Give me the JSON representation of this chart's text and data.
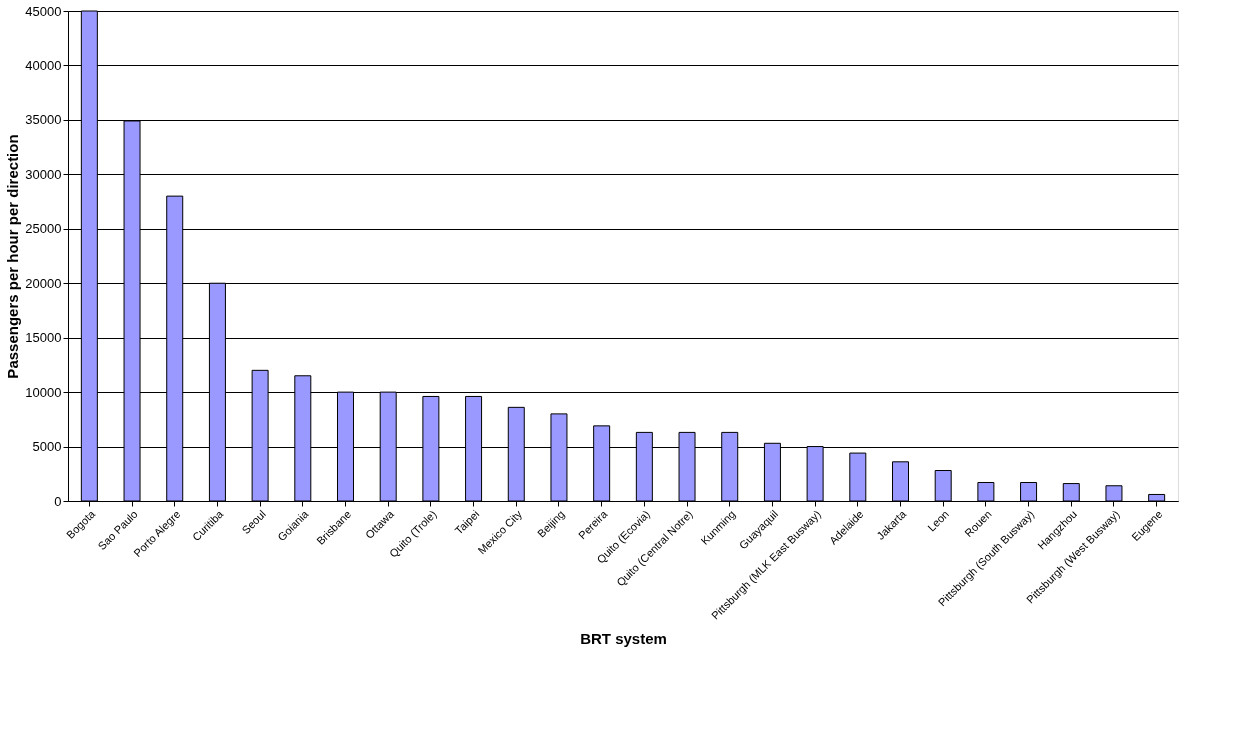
{
  "chart_data": {
    "type": "bar",
    "xlabel": "BRT system",
    "ylabel": "Passengers per hour per direction",
    "categories": [
      "Bogota",
      "Sao Paulo",
      "Porto Alegre",
      "Curitiba",
      "Seoul",
      "Goiania",
      "Brisbane",
      "Ottawa",
      "Quito (Trole)",
      "Taipei",
      "Mexico City",
      "Beijing",
      "Pereira",
      "Quito (Ecovia)",
      "Quito (Central Notre)",
      "Kunming",
      "Guayaquil",
      "Pittsburgh (MLK East Busway)",
      "Adelaide",
      "Jakarta",
      "Leon",
      "Rouen",
      "Pittsburgh (South Busway)",
      "Hangzhou",
      "Pittsburgh (West Busway)",
      "Eugene"
    ],
    "values": [
      45000,
      34900,
      28000,
      20000,
      12000,
      11500,
      10000,
      10000,
      9600,
      9600,
      8600,
      8000,
      6900,
      6300,
      6300,
      6300,
      5300,
      5000,
      4400,
      3600,
      2800,
      1700,
      1700,
      1600,
      1400,
      600
    ],
    "color": "#9999ff",
    "ylim": [
      0,
      45000
    ],
    "yticks": [
      0,
      5000,
      10000,
      15000,
      20000,
      25000,
      30000,
      35000,
      40000,
      45000
    ],
    "grid": "y"
  }
}
